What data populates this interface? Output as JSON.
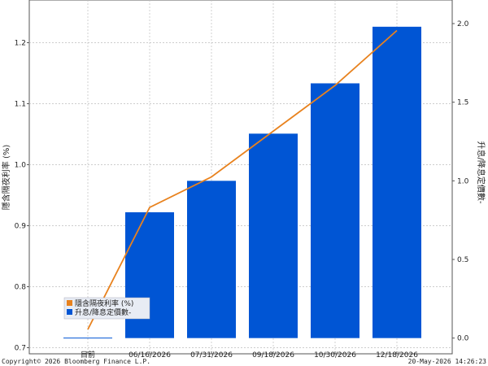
{
  "chart_data": {
    "type": "bar+line",
    "categories": [
      "目前",
      "06/16/2026",
      "07/31/2026",
      "09/18/2026",
      "10/30/2026",
      "12/18/2026"
    ],
    "bar_series": {
      "name": "升息/降息定價數-",
      "axis": "right",
      "values": [
        0.0,
        0.8,
        1.0,
        1.3,
        1.62,
        1.98
      ],
      "color": "#0055d4"
    },
    "line_series": {
      "name": "隱含隔夜利率 (%)",
      "axis": "left",
      "values": [
        0.73,
        0.93,
        0.98,
        1.055,
        1.13,
        1.22
      ],
      "color": "#e8821e"
    },
    "y_left": {
      "label": "隱含隔夜利率 (%)",
      "ticks": [
        "0.7",
        "0.8",
        "0.9",
        "1.0",
        "1.1",
        "1.2"
      ],
      "min": 0.69,
      "max": 1.27
    },
    "y_right": {
      "label": "升息/降息定價數-",
      "ticks": [
        "0.0",
        "0.5",
        "1.0",
        "1.5",
        "2.0"
      ],
      "min": -0.1,
      "max": 2.15
    },
    "grid": true,
    "legend_position": "bottom-left"
  },
  "footer": {
    "copyright": "Copyright© 2026 Bloomberg Finance L.P.",
    "timestamp": "20-May-2026 14:26:23"
  },
  "colors": {
    "bar": "#0055d4",
    "line": "#e8821e",
    "grid": "#bdbdbd"
  }
}
